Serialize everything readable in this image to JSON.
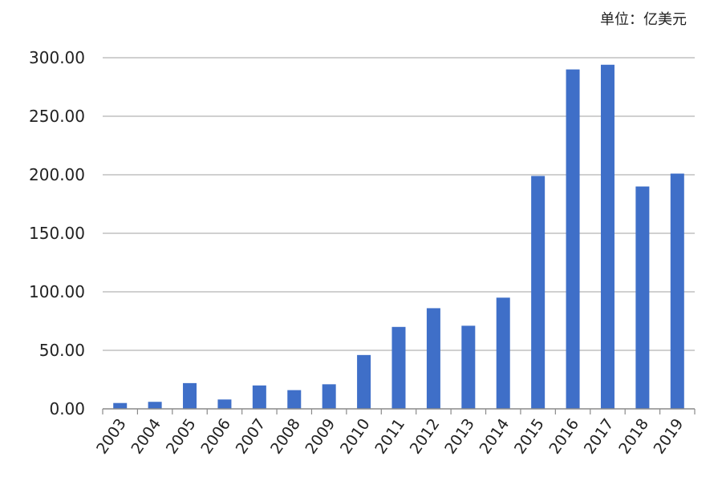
{
  "unit_label": "单位：亿美元",
  "chart_data": {
    "type": "bar",
    "categories": [
      "2003",
      "2004",
      "2005",
      "2006",
      "2007",
      "2008",
      "2009",
      "2010",
      "2011",
      "2012",
      "2013",
      "2014",
      "2015",
      "2016",
      "2017",
      "2018",
      "2019"
    ],
    "values": [
      5,
      6,
      22,
      8,
      20,
      16,
      21,
      46,
      70,
      86,
      71,
      95,
      199,
      290,
      294,
      190,
      201
    ],
    "ylim": [
      0,
      300
    ],
    "yticks": [
      "0.00",
      "50.00",
      "100.00",
      "150.00",
      "200.00",
      "250.00",
      "300.00"
    ],
    "ytick_values": [
      0,
      50,
      100,
      150,
      200,
      250,
      300
    ],
    "grid": true,
    "bar_color": "#3f6fc8",
    "grid_color": "#b5b5b5",
    "axis_color": "#8a8a8a"
  }
}
